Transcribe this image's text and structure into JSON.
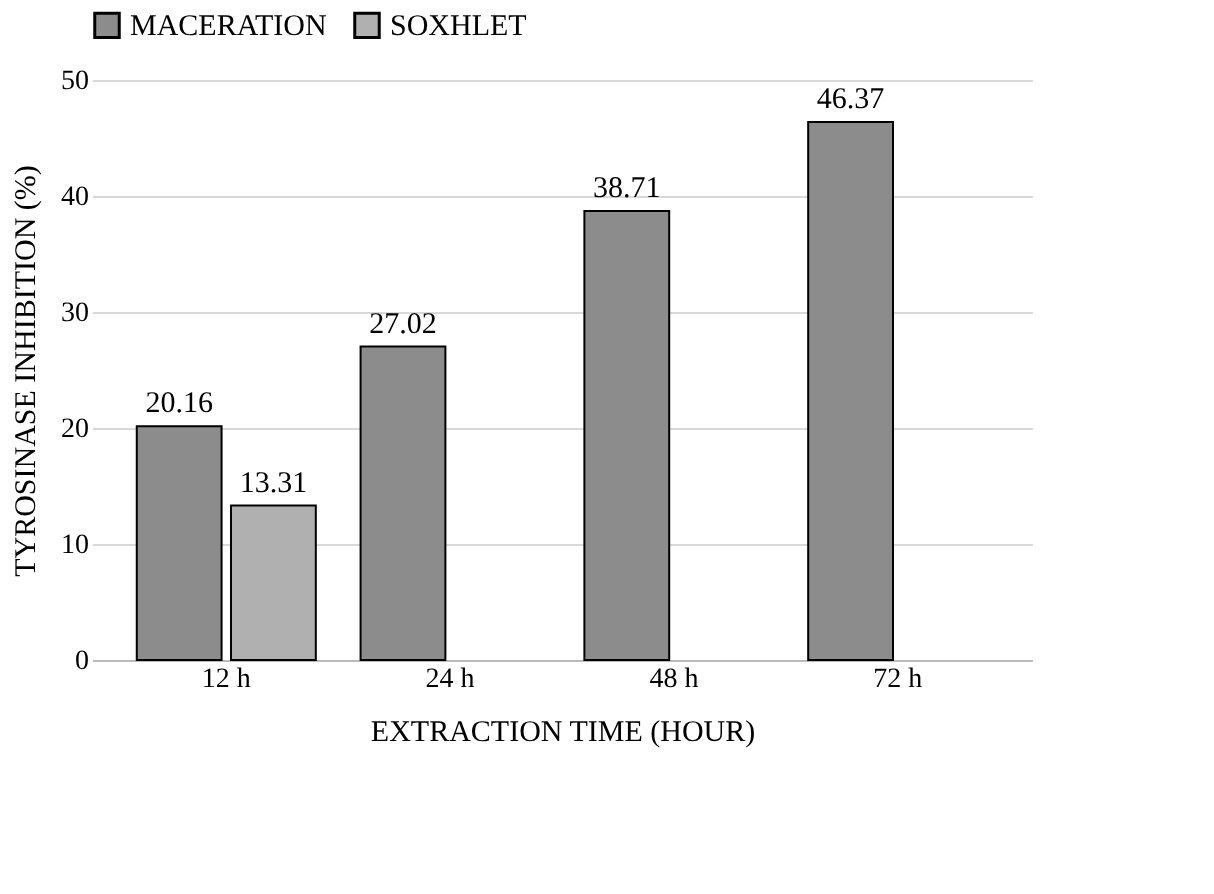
{
  "chart_data": {
    "type": "bar",
    "xlabel": "EXTRACTION TIME (HOUR)",
    "ylabel": "TYROSINASE INHIBITION (%)",
    "categories": [
      "12 h",
      "24 h",
      "48 h",
      "72 h"
    ],
    "series": [
      {
        "name": "MACERATION",
        "color": "#8c8c8c",
        "values": [
          20.16,
          27.02,
          38.71,
          46.37
        ]
      },
      {
        "name": "SOXHLET",
        "color": "#b0b0b0",
        "values": [
          13.31,
          null,
          null,
          null
        ]
      }
    ],
    "ylim": [
      0,
      50
    ],
    "yticks": [
      0,
      10,
      20,
      30,
      40,
      50
    ],
    "grid": "y",
    "legend": "top",
    "data_labels": true
  }
}
